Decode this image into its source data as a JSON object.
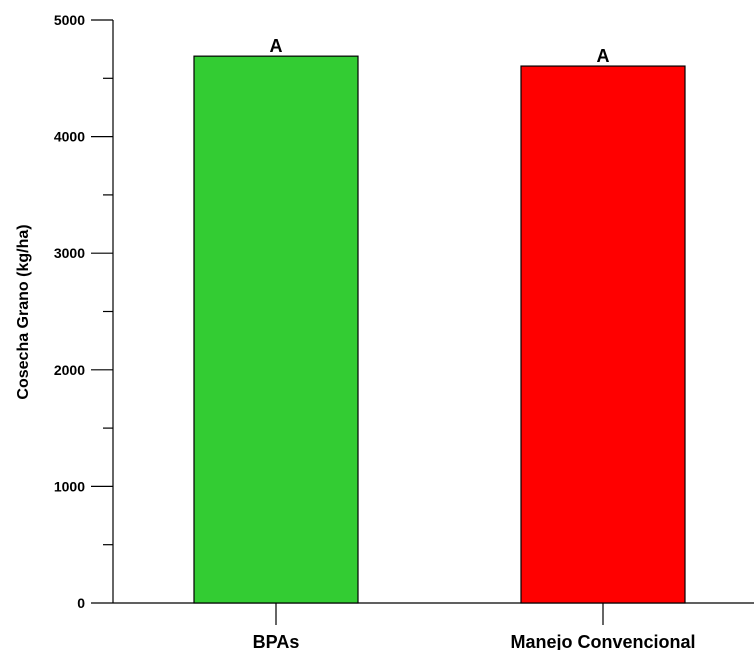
{
  "chart_data": {
    "type": "bar",
    "categories": [
      "BPAs",
      "Manejo Convencional"
    ],
    "values": [
      4690,
      4605
    ],
    "data_labels": [
      "A",
      "A"
    ],
    "colors": [
      "#33cc33",
      "#ff0000"
    ],
    "title": "",
    "xlabel": "",
    "ylabel": "Cosecha Grano (kg/ha)",
    "ylim": [
      0,
      5000
    ],
    "y_major_ticks": [
      0,
      1000,
      2000,
      3000,
      4000,
      5000
    ],
    "y_minor_step": 500,
    "grid": false,
    "legend": "none"
  }
}
